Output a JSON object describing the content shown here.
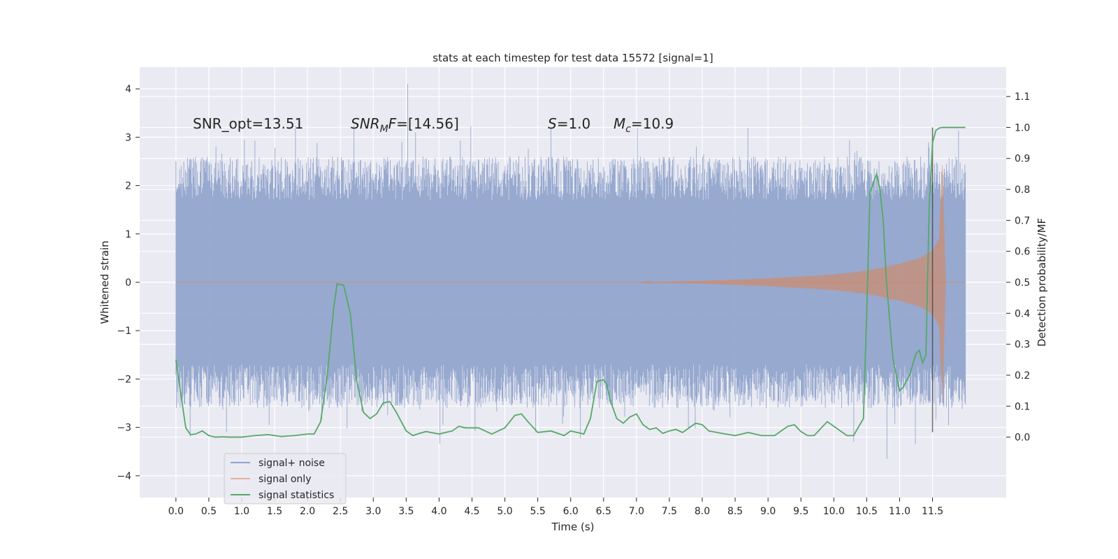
{
  "chart_data": {
    "type": "line",
    "title": "stats at each timestep for test data 15572 [signal=1]",
    "xlabel": "Time (s)",
    "ylabel_left": "Whitened strain",
    "ylabel_right": "Detection probability/MF",
    "xlim": [
      -0.55,
      12.62
    ],
    "ylim_left": [
      -4.45,
      4.45
    ],
    "ylim_right": [
      -0.195,
      1.195
    ],
    "x_ticks": [
      0.0,
      0.5,
      1.0,
      1.5,
      2.0,
      2.5,
      3.0,
      3.5,
      4.0,
      4.5,
      5.0,
      5.5,
      6.0,
      6.5,
      7.0,
      7.5,
      8.0,
      8.5,
      9.0,
      9.5,
      10.0,
      10.5,
      11.0,
      11.5
    ],
    "x_tick_labels": [
      "0.0",
      "0.5",
      "1.0",
      "1.5",
      "2.0",
      "2.5",
      "3.0",
      "3.5",
      "4.0",
      "4.5",
      "5.0",
      "5.5",
      "6.0",
      "6.5",
      "7.0",
      "7.5",
      "8.0",
      "8.5",
      "9.0",
      "9.5",
      "10.0",
      "10.5",
      "11.0",
      "11.5"
    ],
    "y_left_ticks": [
      4,
      3,
      2,
      1,
      0,
      -1,
      -2,
      -3,
      -4
    ],
    "y_left_tick_labels": [
      "4",
      "3",
      "2",
      "1",
      "0",
      "−1",
      "−2",
      "−3",
      "−4"
    ],
    "y_right_ticks": [
      1.1,
      1.0,
      0.9,
      0.8,
      0.7,
      0.6,
      0.5,
      0.4,
      0.3,
      0.2,
      0.1,
      0.0
    ],
    "y_right_tick_labels": [
      "1.1",
      "1.0",
      "0.9",
      "0.8",
      "0.7",
      "0.6",
      "0.5",
      "0.4",
      "0.3",
      "0.2",
      "0.1",
      "0.0"
    ],
    "grid": true,
    "annotations": {
      "snr_opt": "SNR_opt=13.51",
      "snr_mf_sym": "SNR",
      "snr_mf_sub": "M",
      "snr_mf_mid": "F",
      "snr_mf_val": "=[14.56]",
      "s_sym": "S",
      "s_val": "=1.0",
      "mc_sym": "M",
      "mc_sub": "c",
      "mc_val": "=10.9"
    },
    "legend": {
      "position": "lower-left",
      "entries": [
        "signal+ noise",
        "signal only",
        "signal statistics"
      ]
    },
    "series": [
      {
        "name": "signal+ noise",
        "axis": "left",
        "style": "dense-noise",
        "t_start": 0.0,
        "t_end": 12.0,
        "typical_amplitude": 2.0,
        "max_peak": 4.1,
        "min_trough": -3.65
      },
      {
        "name": "signal only",
        "axis": "left",
        "style": "chirp",
        "envelope_t": [
          7.0,
          8.0,
          9.0,
          10.0,
          10.5,
          11.0,
          11.3,
          11.5,
          11.6,
          11.65,
          11.7
        ],
        "envelope_amp": [
          0.0,
          0.03,
          0.08,
          0.16,
          0.24,
          0.38,
          0.5,
          0.65,
          0.9,
          2.5,
          0.0
        ]
      },
      {
        "name": "signal statistics",
        "axis": "right",
        "style": "line",
        "t": [
          0.0,
          0.08,
          0.15,
          0.22,
          0.3,
          0.4,
          0.5,
          0.6,
          0.7,
          0.8,
          1.0,
          1.2,
          1.4,
          1.6,
          1.8,
          2.0,
          2.1,
          2.2,
          2.3,
          2.4,
          2.45,
          2.55,
          2.65,
          2.75,
          2.85,
          2.95,
          3.05,
          3.15,
          3.25,
          3.35,
          3.5,
          3.6,
          3.7,
          3.8,
          4.0,
          4.2,
          4.3,
          4.4,
          4.6,
          4.8,
          5.0,
          5.15,
          5.25,
          5.35,
          5.5,
          5.7,
          5.9,
          6.0,
          6.2,
          6.3,
          6.4,
          6.5,
          6.55,
          6.6,
          6.7,
          6.8,
          6.9,
          7.0,
          7.1,
          7.2,
          7.3,
          7.4,
          7.5,
          7.6,
          7.7,
          7.8,
          7.9,
          8.0,
          8.1,
          8.3,
          8.5,
          8.7,
          8.9,
          9.1,
          9.3,
          9.4,
          9.5,
          9.6,
          9.7,
          9.9,
          10.1,
          10.2,
          10.3,
          10.45,
          10.5,
          10.55,
          10.6,
          10.65,
          10.7,
          10.75,
          10.8,
          10.9,
          11.0,
          11.05,
          11.15,
          11.25,
          11.3,
          11.35,
          11.4,
          11.45,
          11.5,
          11.55,
          11.6,
          11.65,
          11.7,
          11.8,
          12.0
        ],
        "v": [
          0.25,
          0.13,
          0.03,
          0.008,
          0.01,
          0.02,
          0.005,
          0.0,
          0.001,
          0.0,
          0.0,
          0.005,
          0.008,
          0.002,
          0.005,
          0.01,
          0.01,
          0.05,
          0.2,
          0.42,
          0.495,
          0.49,
          0.4,
          0.18,
          0.08,
          0.06,
          0.075,
          0.11,
          0.115,
          0.08,
          0.02,
          0.005,
          0.012,
          0.018,
          0.01,
          0.02,
          0.035,
          0.03,
          0.03,
          0.01,
          0.03,
          0.07,
          0.075,
          0.05,
          0.015,
          0.02,
          0.005,
          0.02,
          0.01,
          0.06,
          0.18,
          0.185,
          0.17,
          0.12,
          0.06,
          0.045,
          0.065,
          0.075,
          0.04,
          0.025,
          0.03,
          0.012,
          0.02,
          0.025,
          0.015,
          0.03,
          0.045,
          0.04,
          0.02,
          0.012,
          0.005,
          0.015,
          0.005,
          0.005,
          0.035,
          0.04,
          0.018,
          0.005,
          0.005,
          0.05,
          0.02,
          0.005,
          0.005,
          0.06,
          0.4,
          0.79,
          0.82,
          0.85,
          0.8,
          0.7,
          0.5,
          0.25,
          0.15,
          0.16,
          0.2,
          0.27,
          0.28,
          0.24,
          0.265,
          0.75,
          0.95,
          0.99,
          0.998,
          1.0,
          1.0,
          1.0,
          1.0
        ]
      }
    ],
    "colors": {
      "plot_bg": "#EAEAF2",
      "grid": "#FFFFFF",
      "noise": "#8FA3CC",
      "signal": "#DD8452",
      "stats": "#55A868",
      "text": "#262626",
      "vline": "#333333"
    },
    "vertical_marker_x": 11.5
  }
}
